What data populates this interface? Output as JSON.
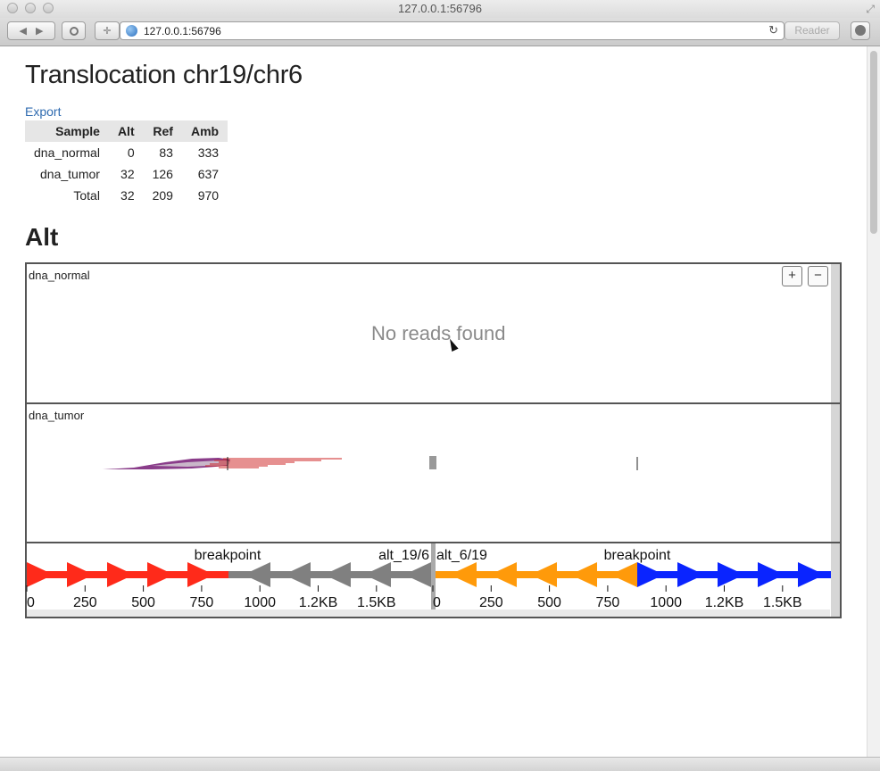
{
  "window": {
    "title": "127.0.0.1:56796"
  },
  "toolbar": {
    "url": "127.0.0.1:56796",
    "reader_label": "Reader",
    "back_icon": "back-arrow-icon",
    "forward_icon": "forward-arrow-icon"
  },
  "page": {
    "title": "Translocation chr19/chr6",
    "export_label": "Export",
    "table": {
      "headers": [
        "Sample",
        "Alt",
        "Ref",
        "Amb"
      ],
      "rows": [
        [
          "dna_normal",
          "0",
          "83",
          "333"
        ],
        [
          "dna_tumor",
          "32",
          "126",
          "637"
        ],
        [
          "Total",
          "32",
          "209",
          "970"
        ]
      ]
    },
    "section_title": "Alt"
  },
  "viz": {
    "tracks": [
      {
        "label": "dna_normal",
        "message": "No reads found"
      },
      {
        "label": "dna_tumor"
      }
    ],
    "zoom_in_label": "+",
    "zoom_out_label": "−",
    "segment_labels": {
      "left": "alt_19/6",
      "right": "alt_6/19",
      "breakpoint": "breakpoint"
    },
    "ticks": [
      "0",
      "250",
      "500",
      "750",
      "1000",
      "1.2KB",
      "1.5KB"
    ],
    "colors": {
      "seg1": "#ff2a1a",
      "seg2": "#808080",
      "seg3": "#ff9a0a",
      "seg4": "#0a24ff",
      "reads_purple": "#8a3d8a",
      "reads_red": "#cc2222"
    }
  }
}
